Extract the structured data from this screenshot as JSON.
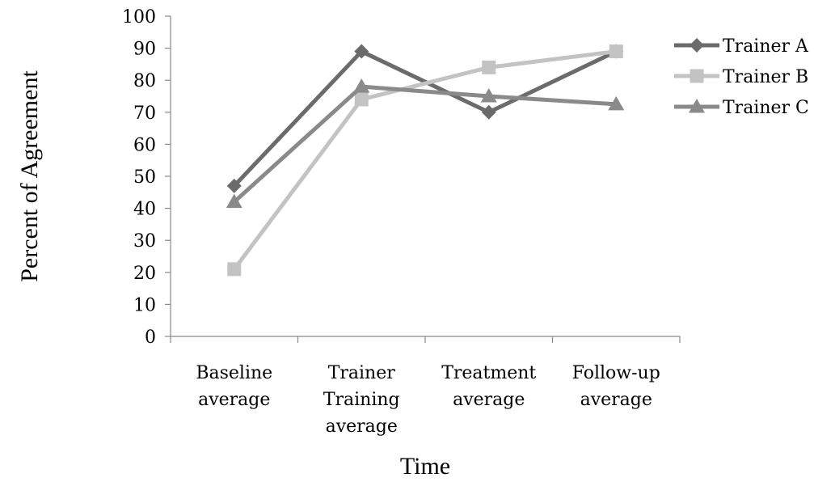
{
  "chart_data": {
    "type": "line",
    "title": "",
    "xlabel": "Time",
    "ylabel": "Percent of Agreement",
    "ylim": [
      0,
      100
    ],
    "yticks": [
      0,
      10,
      20,
      30,
      40,
      50,
      60,
      70,
      80,
      90,
      100
    ],
    "categories": [
      [
        "Baseline",
        "average"
      ],
      [
        "Trainer",
        "Training",
        "average"
      ],
      [
        "Treatment",
        "average"
      ],
      [
        "Follow-up",
        "average"
      ]
    ],
    "grid": false,
    "legend_position": "right",
    "series": [
      {
        "name": "Trainer A",
        "values": [
          47,
          89,
          70,
          89
        ],
        "color": "#6b6b6b",
        "marker": "diamond"
      },
      {
        "name": "Trainer B",
        "values": [
          21,
          74,
          84,
          89
        ],
        "color": "#c3c3c3",
        "marker": "square"
      },
      {
        "name": "Trainer C",
        "values": [
          42,
          78,
          75,
          72.5
        ],
        "color": "#8a8a8a",
        "marker": "triangle"
      }
    ]
  }
}
